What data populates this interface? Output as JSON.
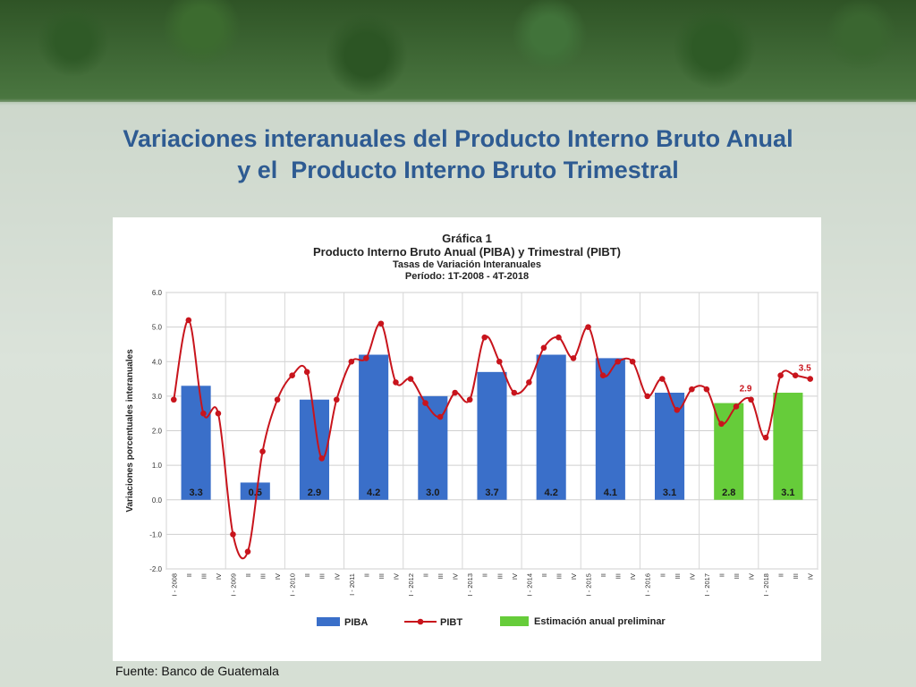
{
  "slide": {
    "title_line1": "Variaciones interanuales del Producto Interno Bruto Anual",
    "title_line2": "y el  Producto Interno Bruto Trimestral",
    "source": "Fuente: Banco de Guatemala"
  },
  "chart_data": {
    "type": "bar",
    "title": "Gráfica 1",
    "subtitle": "Producto Interno Bruto Anual (PIBA) y Trimestral (PIBT)",
    "subtitle2": "Tasas de Variación Interanuales",
    "subtitle3": "Período: 1T-2008 - 4T-2018",
    "ylabel": "Variaciones porcentuales interanuales",
    "ylim": [
      -2.0,
      6.0
    ],
    "yticks": [
      "6.0",
      "5.0",
      "4.0",
      "3.0",
      "2.0",
      "1.0",
      "0.0",
      "-1.0",
      "-2.0"
    ],
    "x_quarter_labels": [
      "I - 2008",
      "II",
      "III",
      "IV",
      "I - 2009",
      "II",
      "III",
      "IV",
      "I - 2010",
      "II",
      "III",
      "IV",
      "I - 2011",
      "II",
      "III",
      "IV",
      "I - 2012",
      "II",
      "III",
      "IV",
      "I - 2013",
      "II",
      "III",
      "IV",
      "I - 2014",
      "II",
      "III",
      "IV",
      "I - 2015",
      "II",
      "III",
      "IV",
      "I - 2016",
      "II",
      "III",
      "IV",
      "I - 2017",
      "II",
      "III",
      "IV",
      "I - 2018",
      "II",
      "III",
      "IV"
    ],
    "legend": {
      "piba": "PIBA",
      "pibt": "PIBT",
      "prelim": "Estimación anual preliminar"
    },
    "colors": {
      "piba": "#3a6fc9",
      "pibt": "#c8141c",
      "prelim": "#66cc3a"
    },
    "piba": [
      {
        "year": "2008",
        "value": 3.3,
        "label": "3.3",
        "preliminary": false
      },
      {
        "year": "2009",
        "value": 0.5,
        "label": "0.5",
        "preliminary": false
      },
      {
        "year": "2010",
        "value": 2.9,
        "label": "2.9",
        "preliminary": false
      },
      {
        "year": "2011",
        "value": 4.2,
        "label": "4.2",
        "preliminary": false
      },
      {
        "year": "2012",
        "value": 3.0,
        "label": "3.0",
        "preliminary": false
      },
      {
        "year": "2013",
        "value": 3.7,
        "label": "3.7",
        "preliminary": false
      },
      {
        "year": "2014",
        "value": 4.2,
        "label": "4.2",
        "preliminary": false
      },
      {
        "year": "2015",
        "value": 4.1,
        "label": "4.1",
        "preliminary": false
      },
      {
        "year": "2016",
        "value": 3.1,
        "label": "3.1",
        "preliminary": false
      },
      {
        "year": "2017",
        "value": 2.8,
        "label": "2.8",
        "preliminary": true
      },
      {
        "year": "2018",
        "value": 3.1,
        "label": "3.1",
        "preliminary": true
      }
    ],
    "pibt": [
      2.9,
      5.2,
      2.5,
      2.5,
      -1.0,
      -1.5,
      1.4,
      2.9,
      3.6,
      3.7,
      1.2,
      2.9,
      4.0,
      4.1,
      5.1,
      3.4,
      3.5,
      2.8,
      2.4,
      3.1,
      2.9,
      4.7,
      4.0,
      3.1,
      3.4,
      4.4,
      4.7,
      4.1,
      5.0,
      3.6,
      4.0,
      4.0,
      3.0,
      3.5,
      2.6,
      3.2,
      3.2,
      2.2,
      2.7,
      2.9,
      1.8,
      3.6,
      3.6,
      3.5
    ],
    "annotations": [
      {
        "text": "2.9",
        "index": 39
      },
      {
        "text": "3.5",
        "index": 43
      }
    ]
  }
}
